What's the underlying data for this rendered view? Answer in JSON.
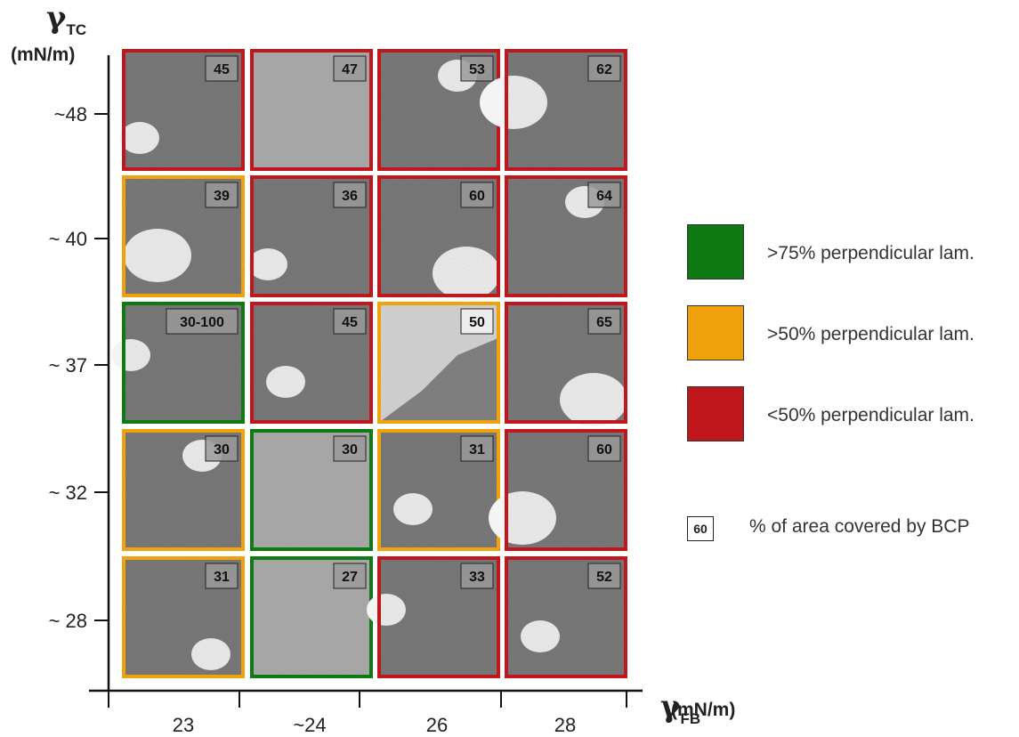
{
  "axes": {
    "y_symbol": "γ",
    "y_subscript": "TC",
    "y_unit": "(mN/m)",
    "x_symbol": "γ",
    "x_subscript": "FB",
    "x_unit": "(mN/m)",
    "x_ticks": [
      "23",
      "~24",
      "26",
      "28"
    ],
    "y_ticks": [
      "~48",
      "~ 40",
      "~ 37",
      "~ 32",
      "~ 28"
    ]
  },
  "colors": {
    "green": "#0f7a12",
    "orange": "#f0a20c",
    "red": "#c0161c",
    "tile_dark": "#6e6e6e",
    "tile_light": "#f4f4f4"
  },
  "legend": [
    {
      "color": "green",
      "label": ">75% perpendicular lam."
    },
    {
      "color": "orange",
      "label": ">50% perpendicular lam."
    },
    {
      "color": "red",
      "label": "<50% perpendicular lam."
    }
  ],
  "legend_area": {
    "example": "60",
    "label": "% of area covered by BCP"
  },
  "grid": [
    [
      {
        "value": "45",
        "border": "red",
        "tone": "dark"
      },
      {
        "value": "47",
        "border": "red",
        "tone": "mid"
      },
      {
        "value": "53",
        "border": "red",
        "tone": "dark"
      },
      {
        "value": "62",
        "border": "red",
        "tone": "mixed"
      }
    ],
    [
      {
        "value": "39",
        "border": "orange",
        "tone": "mixed"
      },
      {
        "value": "36",
        "border": "red",
        "tone": "dark"
      },
      {
        "value": "60",
        "border": "red",
        "tone": "mixed"
      },
      {
        "value": "64",
        "border": "red",
        "tone": "dark"
      }
    ],
    [
      {
        "value": "30-100",
        "border": "green",
        "tone": "dark"
      },
      {
        "value": "45",
        "border": "red",
        "tone": "dark"
      },
      {
        "value": "50",
        "border": "orange",
        "tone": "light"
      },
      {
        "value": "65",
        "border": "red",
        "tone": "mixed"
      }
    ],
    [
      {
        "value": "30",
        "border": "orange",
        "tone": "dark"
      },
      {
        "value": "30",
        "border": "green",
        "tone": "mid"
      },
      {
        "value": "31",
        "border": "orange",
        "tone": "dark"
      },
      {
        "value": "60",
        "border": "red",
        "tone": "mixed"
      }
    ],
    [
      {
        "value": "31",
        "border": "orange",
        "tone": "dark"
      },
      {
        "value": "27",
        "border": "green",
        "tone": "mid"
      },
      {
        "value": "33",
        "border": "red",
        "tone": "dark"
      },
      {
        "value": "52",
        "border": "red",
        "tone": "dark"
      }
    ]
  ]
}
